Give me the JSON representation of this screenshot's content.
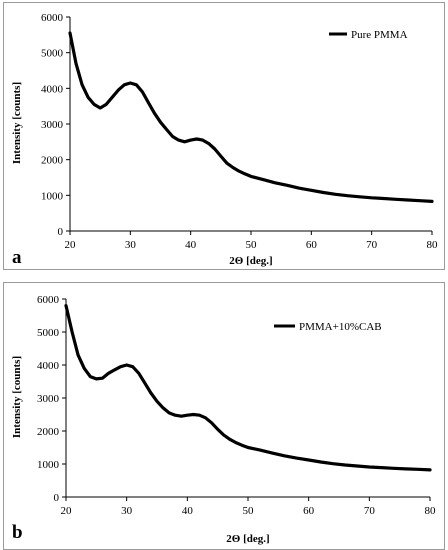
{
  "chart_data": [
    {
      "type": "line",
      "panel_label": "a",
      "xlabel": "2Θ [deg.]",
      "ylabel": "Intensity [counts]",
      "xlim": [
        20,
        80
      ],
      "ylim": [
        0,
        6000
      ],
      "x_ticks": [
        20,
        30,
        40,
        50,
        60,
        70,
        80
      ],
      "y_ticks": [
        0,
        1000,
        2000,
        3000,
        4000,
        5000,
        6000
      ],
      "grid": false,
      "legend_position": "top-right",
      "series": [
        {
          "name": "Pure PMMA",
          "color": "#000000",
          "x": [
            20,
            21,
            22,
            23,
            24,
            25,
            26,
            27,
            28,
            29,
            30,
            31,
            32,
            33,
            34,
            35,
            36,
            37,
            38,
            39,
            40,
            41,
            42,
            43,
            44,
            45,
            46,
            47,
            48,
            49,
            50,
            52,
            54,
            56,
            58,
            60,
            62,
            64,
            66,
            68,
            70,
            72,
            74,
            76,
            78,
            80
          ],
          "y": [
            5550,
            4700,
            4100,
            3750,
            3550,
            3450,
            3550,
            3750,
            3950,
            4100,
            4150,
            4100,
            3900,
            3600,
            3300,
            3050,
            2850,
            2650,
            2550,
            2500,
            2550,
            2580,
            2550,
            2450,
            2300,
            2100,
            1900,
            1780,
            1680,
            1600,
            1530,
            1440,
            1350,
            1280,
            1200,
            1140,
            1080,
            1030,
            990,
            960,
            930,
            910,
            890,
            870,
            850,
            830
          ]
        }
      ]
    },
    {
      "type": "line",
      "panel_label": "b",
      "xlabel": "2Θ [deg.]",
      "ylabel": "Intensity [counts]",
      "xlim": [
        20,
        80
      ],
      "ylim": [
        0,
        6000
      ],
      "x_ticks": [
        20,
        30,
        40,
        50,
        60,
        70,
        80
      ],
      "y_ticks": [
        0,
        1000,
        2000,
        3000,
        4000,
        5000,
        6000
      ],
      "grid": false,
      "legend_position": "top-right",
      "series": [
        {
          "name": "PMMA+10%CAB",
          "color": "#000000",
          "x": [
            20,
            21,
            22,
            23,
            24,
            25,
            26,
            27,
            28,
            29,
            30,
            31,
            32,
            33,
            34,
            35,
            36,
            37,
            38,
            39,
            40,
            41,
            42,
            43,
            44,
            45,
            46,
            47,
            48,
            49,
            50,
            52,
            54,
            56,
            58,
            60,
            62,
            64,
            66,
            68,
            70,
            72,
            74,
            76,
            78,
            80
          ],
          "y": [
            5800,
            5000,
            4300,
            3900,
            3650,
            3580,
            3600,
            3750,
            3850,
            3950,
            4000,
            3950,
            3750,
            3450,
            3150,
            2900,
            2700,
            2550,
            2480,
            2450,
            2480,
            2500,
            2480,
            2400,
            2250,
            2050,
            1880,
            1750,
            1650,
            1570,
            1500,
            1420,
            1330,
            1250,
            1180,
            1120,
            1060,
            1010,
            970,
            940,
            910,
            890,
            870,
            850,
            840,
            820
          ]
        }
      ]
    }
  ]
}
